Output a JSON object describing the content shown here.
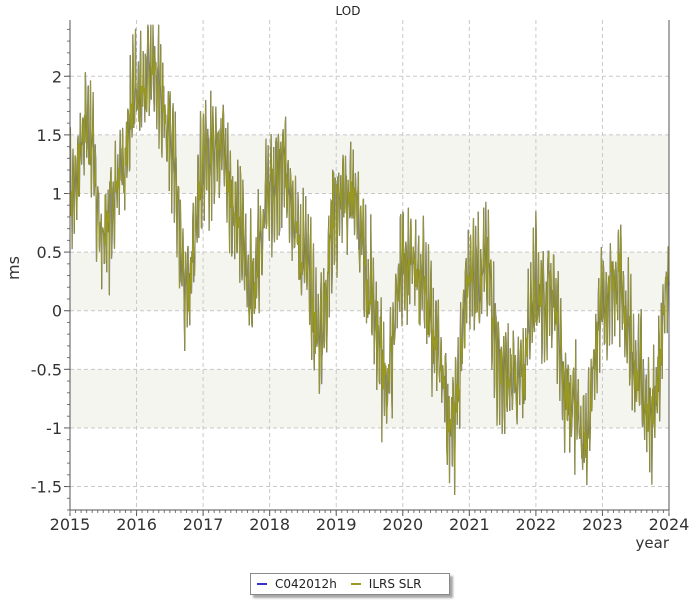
{
  "chart_data": {
    "type": "line",
    "title": "LOD",
    "xlabel": "year",
    "ylabel": "ms",
    "xlim": [
      2015,
      2024
    ],
    "ylim": [
      -1.7,
      2.48
    ],
    "xticks": [
      "2015",
      "2016",
      "2017",
      "2018",
      "2019",
      "2020",
      "2021",
      "2022",
      "2023",
      "2024"
    ],
    "yticks": [
      "-1.5",
      "-1",
      "-0.5",
      "0",
      "0.5",
      "1",
      "1.5",
      "2"
    ],
    "grid": true,
    "legend_position": "bottom-center",
    "band_color": "#f5f5f0",
    "series": [
      {
        "name": "C042012h",
        "color": "#3333cc",
        "x": [
          2015.0,
          2015.25,
          2015.5,
          2015.75,
          2016.0,
          2016.25,
          2016.5,
          2016.75,
          2017.0,
          2017.25,
          2017.5,
          2017.75,
          2018.0,
          2018.25,
          2018.5,
          2018.75,
          2019.0,
          2019.25,
          2019.5,
          2019.75,
          2020.0,
          2020.25,
          2020.5,
          2020.75,
          2021.0,
          2021.25,
          2021.5,
          2021.75,
          2022.0,
          2022.25,
          2022.5,
          2022.75,
          2023.0,
          2023.25,
          2023.5,
          2023.75,
          2024.0
        ],
        "y": [
          1.0,
          1.6,
          0.6,
          1.2,
          1.8,
          2.1,
          1.5,
          0.2,
          1.2,
          1.5,
          0.8,
          0.2,
          1.0,
          1.2,
          0.5,
          -0.2,
          0.9,
          1.0,
          0.2,
          -0.6,
          0.4,
          0.3,
          -0.3,
          -1.0,
          0.3,
          0.4,
          -0.6,
          -0.6,
          0.2,
          0.1,
          -0.8,
          -1.0,
          0.1,
          0.3,
          -0.5,
          -0.9,
          0.2
        ]
      },
      {
        "name": "ILRS SLR",
        "color": "#999922",
        "x": [
          2015.0,
          2015.25,
          2015.5,
          2015.75,
          2016.0,
          2016.25,
          2016.5,
          2016.75,
          2017.0,
          2017.25,
          2017.5,
          2017.75,
          2018.0,
          2018.25,
          2018.5,
          2018.75,
          2019.0,
          2019.25,
          2019.5,
          2019.75,
          2020.0,
          2020.25,
          2020.5,
          2020.75,
          2021.0,
          2021.25,
          2021.5,
          2021.75,
          2022.0,
          2022.25,
          2022.5,
          2022.75,
          2023.0,
          2023.25,
          2023.5,
          2023.75,
          2024.0
        ],
        "y": [
          1.0,
          1.6,
          0.6,
          1.2,
          1.8,
          2.1,
          1.5,
          0.2,
          1.2,
          1.5,
          0.8,
          0.2,
          1.0,
          1.2,
          0.5,
          -0.2,
          0.9,
          1.0,
          0.2,
          -0.6,
          0.4,
          0.3,
          -0.3,
          -1.0,
          0.3,
          0.4,
          -0.6,
          -0.6,
          0.2,
          0.1,
          -0.8,
          -1.0,
          0.1,
          0.3,
          -0.5,
          -0.9,
          0.2
        ]
      }
    ]
  }
}
